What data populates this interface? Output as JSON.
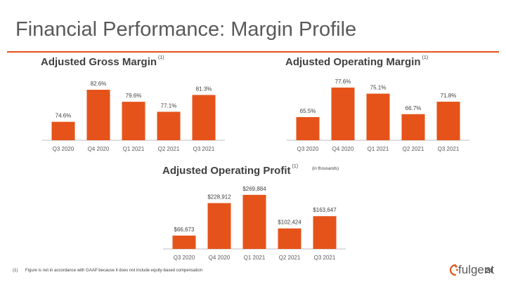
{
  "page": {
    "title": "Financial Performance: Margin Profile",
    "footnote_marker": "(1)",
    "footnote_text": "Figure is not in accordance with GAAP because it does not include equity-based compensation",
    "page_number": "24",
    "logo_text": "fulgent",
    "accent_color": "#e5531a",
    "bar_color": "#e5531a"
  },
  "chart_data": [
    {
      "type": "bar",
      "title": "Adjusted Gross Margin",
      "title_sup": "(1)",
      "categories": [
        "Q3 2020",
        "Q4 2020",
        "Q1 2021",
        "Q2 2021",
        "Q3 2021"
      ],
      "values": [
        74.6,
        82.6,
        79.6,
        77.1,
        81.3
      ],
      "labels": [
        "74.6%",
        "82.6%",
        "79.6%",
        "77.1%",
        "81.3%"
      ],
      "ylim": [
        70,
        84
      ]
    },
    {
      "type": "bar",
      "title": "Adjusted Operating Margin",
      "title_sup": "(1)",
      "categories": [
        "Q3 2020",
        "Q4 2020",
        "Q1 2021",
        "Q2 2021",
        "Q3 2021"
      ],
      "values": [
        65.5,
        77.6,
        75.1,
        66.7,
        71.8
      ],
      "labels": [
        "65.5%",
        "77.6%",
        "75.1%",
        "66.7%",
        "71.8%"
      ],
      "ylim": [
        56,
        79
      ]
    },
    {
      "type": "bar",
      "title": "Adjusted Operating Profit",
      "title_sup": "(1)",
      "note": "(in thousands)",
      "categories": [
        "Q3 2020",
        "Q4 2020",
        "Q1 2021",
        "Q2 2021",
        "Q3 2021"
      ],
      "values": [
        66673,
        228912,
        269884,
        102424,
        163647
      ],
      "labels": [
        "$66,673",
        "$228,912",
        "$269,884",
        "$102,424",
        "$163,647"
      ],
      "ylim": [
        0,
        280000
      ]
    }
  ]
}
